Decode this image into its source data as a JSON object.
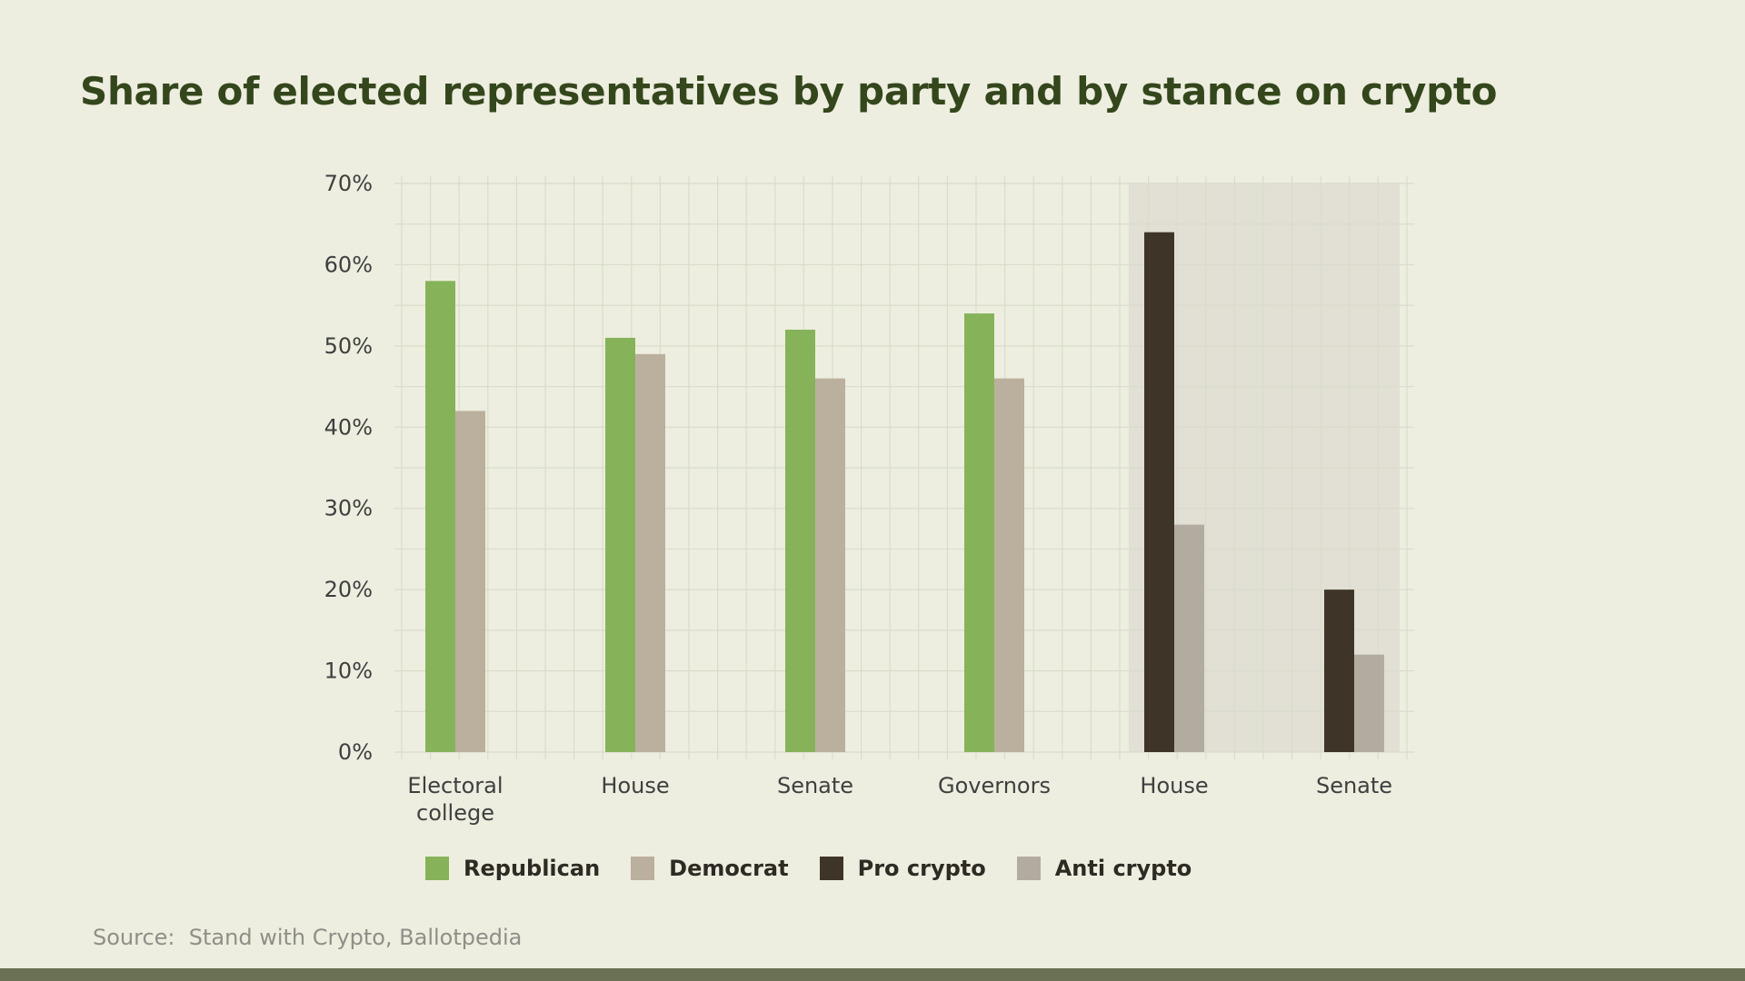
{
  "title": "Share of elected representatives by party and by stance on crypto",
  "source": {
    "label": "Source:",
    "text": "Stand with Crypto, Ballotpedia"
  },
  "colors": {
    "background": "#edeedf",
    "republican": "#86b35a",
    "democrat": "#bbb09d",
    "pro_crypto": "#3e3528",
    "anti_crypto": "#b2ab9f",
    "shade": "#e2dfd5",
    "title": "#34461c",
    "footer_bar": "#6b7154"
  },
  "legend": [
    {
      "label": "Republican",
      "color_key": "republican"
    },
    {
      "label": "Democrat",
      "color_key": "democrat"
    },
    {
      "label": "Pro crypto",
      "color_key": "pro_crypto"
    },
    {
      "label": "Anti crypto",
      "color_key": "anti_crypto"
    }
  ],
  "chart_data": {
    "type": "bar",
    "title": "Share of elected representatives by party and by stance on crypto",
    "xlabel": "",
    "ylabel": "",
    "ylim": [
      0,
      70
    ],
    "yticks": [
      "0%",
      "10%",
      "20%",
      "30%",
      "40%",
      "50%",
      "60%",
      "70%"
    ],
    "grid": true,
    "legend_position": "bottom",
    "groups": [
      {
        "label_lines": [
          "Electoral",
          "college"
        ],
        "shaded": false,
        "bars": [
          {
            "series": "Republican",
            "value": 58,
            "color_key": "republican"
          },
          {
            "series": "Democrat",
            "value": 42,
            "color_key": "democrat"
          }
        ]
      },
      {
        "label_lines": [
          "House"
        ],
        "shaded": false,
        "bars": [
          {
            "series": "Republican",
            "value": 51,
            "color_key": "republican"
          },
          {
            "series": "Democrat",
            "value": 49,
            "color_key": "democrat"
          }
        ]
      },
      {
        "label_lines": [
          "Senate"
        ],
        "shaded": false,
        "bars": [
          {
            "series": "Republican",
            "value": 52,
            "color_key": "republican"
          },
          {
            "series": "Democrat",
            "value": 46,
            "color_key": "democrat"
          }
        ]
      },
      {
        "label_lines": [
          "Governors"
        ],
        "shaded": false,
        "bars": [
          {
            "series": "Republican",
            "value": 54,
            "color_key": "republican"
          },
          {
            "series": "Democrat",
            "value": 46,
            "color_key": "democrat"
          }
        ]
      },
      {
        "label_lines": [
          "House"
        ],
        "shaded": true,
        "bars": [
          {
            "series": "Pro crypto",
            "value": 64,
            "color_key": "pro_crypto"
          },
          {
            "series": "Anti crypto",
            "value": 28,
            "color_key": "anti_crypto"
          }
        ]
      },
      {
        "label_lines": [
          "Senate"
        ],
        "shaded": true,
        "bars": [
          {
            "series": "Pro crypto",
            "value": 20,
            "color_key": "pro_crypto"
          },
          {
            "series": "Anti crypto",
            "value": 12,
            "color_key": "anti_crypto"
          }
        ]
      }
    ]
  }
}
